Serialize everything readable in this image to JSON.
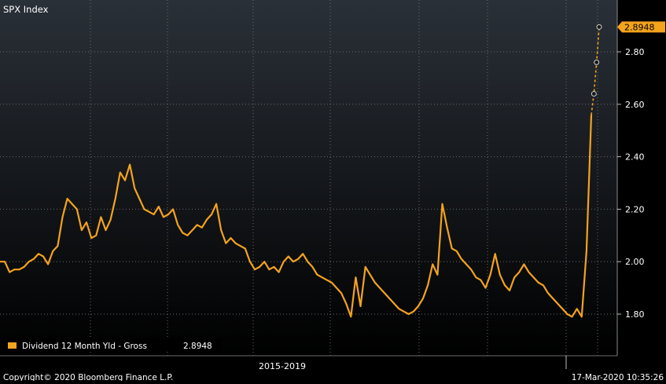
{
  "window": {
    "security": "SPX Index",
    "copyright": "Copyright© 2020 Bloomberg Finance L.P.",
    "timestamp": "17-Mar-2020 10:35:26"
  },
  "colors": {
    "line": "#f4a31d",
    "background_top": "#2a3038",
    "background_bottom": "#000000",
    "grid": "#6b6b6b",
    "text": "#ffffff"
  },
  "chart_data": {
    "type": "line",
    "title": "SPX Index",
    "xlabel": "2015-2019",
    "ylabel": "",
    "ylim": [
      1.65,
      2.95
    ],
    "y_ticks": [
      1.8,
      2.0,
      2.2,
      2.4,
      2.6,
      2.8
    ],
    "y_tick_labels": [
      "1.80",
      "2.00",
      "2.20",
      "2.40",
      "2.60",
      "2.80"
    ],
    "grid": true,
    "legend_position": "bottom-left",
    "last_value_label": "2.8948",
    "x_end_label": "17-Mar-2020",
    "series": [
      {
        "name": "Dividend 12 Month Yld - Gross 2.8948",
        "legend_label": "Dividend 12 Month Yld - Gross",
        "last_value": "2.8948",
        "values": [
          2.0,
          2.0,
          1.96,
          1.97,
          1.97,
          1.98,
          2.0,
          2.01,
          2.03,
          2.02,
          1.99,
          2.04,
          2.06,
          2.17,
          2.24,
          2.22,
          2.2,
          2.12,
          2.15,
          2.09,
          2.1,
          2.17,
          2.12,
          2.16,
          2.24,
          2.34,
          2.31,
          2.37,
          2.28,
          2.24,
          2.2,
          2.19,
          2.18,
          2.21,
          2.17,
          2.18,
          2.2,
          2.14,
          2.11,
          2.1,
          2.12,
          2.14,
          2.13,
          2.16,
          2.18,
          2.22,
          2.12,
          2.07,
          2.09,
          2.07,
          2.06,
          2.05,
          2.0,
          1.97,
          1.98,
          2.0,
          1.97,
          1.98,
          1.96,
          2.0,
          2.02,
          2.0,
          2.01,
          2.03,
          2.0,
          1.98,
          1.95,
          1.94,
          1.93,
          1.92,
          1.9,
          1.88,
          1.84,
          1.79,
          1.94,
          1.83,
          1.98,
          1.95,
          1.92,
          1.9,
          1.88,
          1.86,
          1.84,
          1.82,
          1.81,
          1.8,
          1.81,
          1.83,
          1.86,
          1.91,
          1.99,
          1.95,
          2.22,
          2.13,
          2.05,
          2.04,
          2.01,
          1.99,
          1.97,
          1.94,
          1.93,
          1.9,
          1.95,
          2.03,
          1.95,
          1.91,
          1.89,
          1.94,
          1.96,
          1.99,
          1.96,
          1.94,
          1.92,
          1.91,
          1.88,
          1.86,
          1.84,
          1.82,
          1.8,
          1.79,
          1.82,
          1.79,
          2.04,
          2.56
        ]
      }
    ],
    "projection": {
      "values": [
        2.56,
        2.64,
        2.76,
        2.8948
      ]
    }
  }
}
